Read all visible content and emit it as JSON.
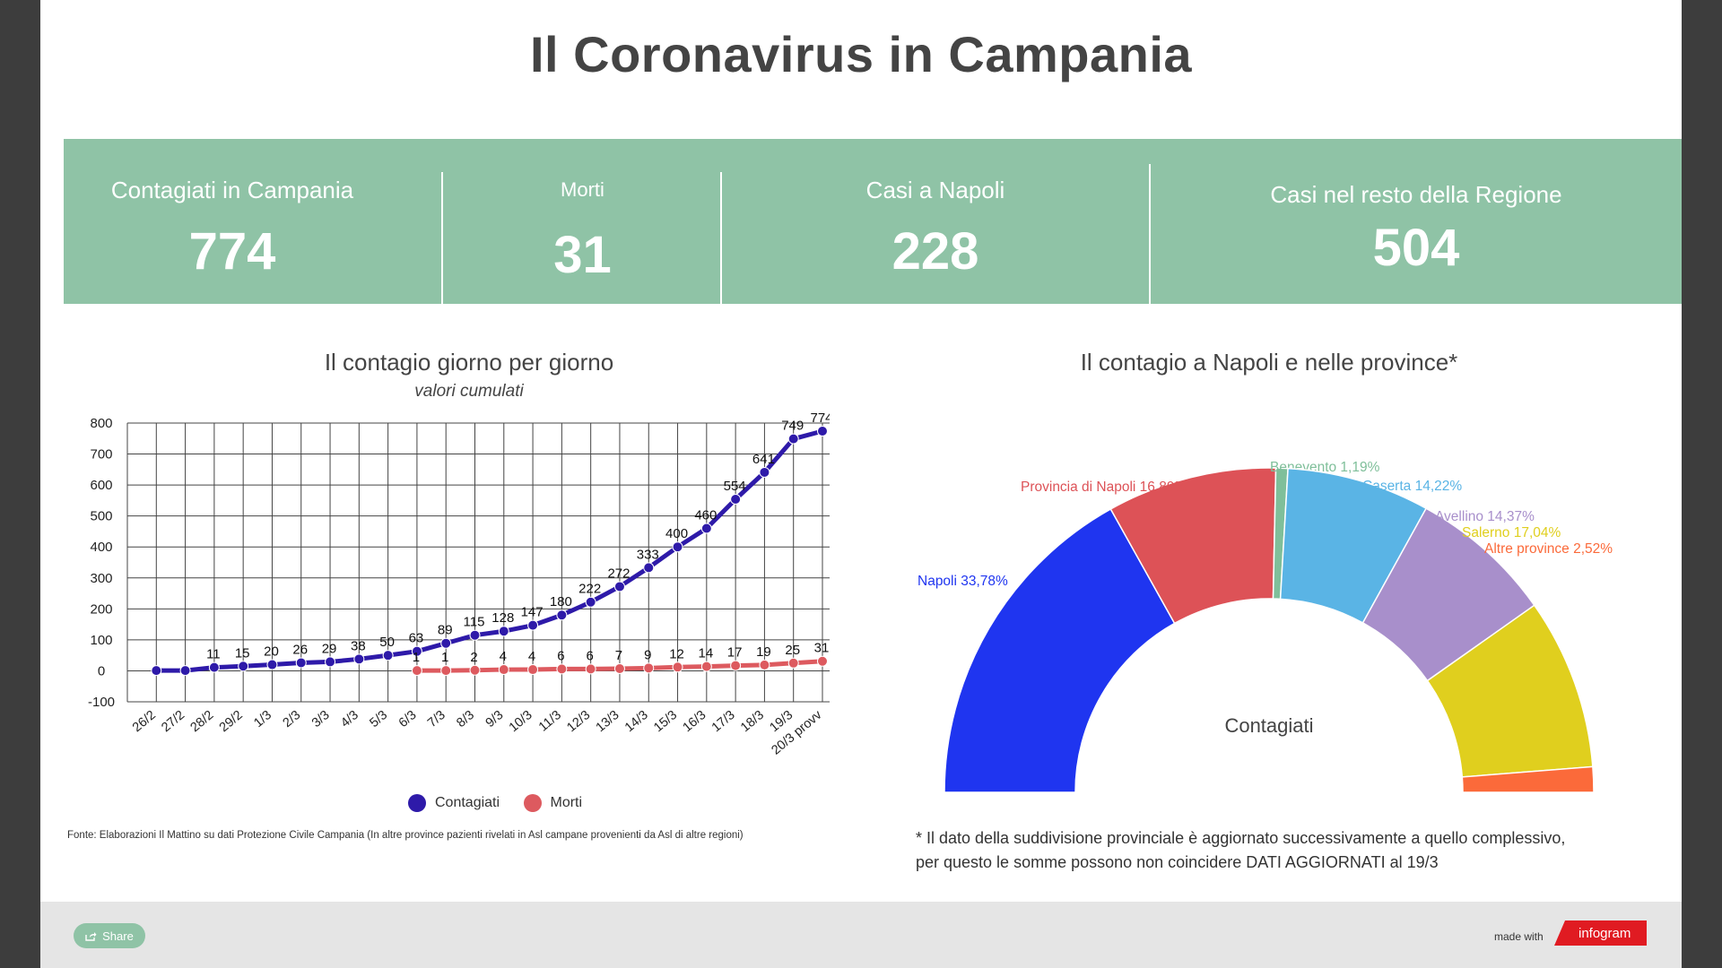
{
  "title": "Il Coronavirus in Campania",
  "stats": [
    {
      "label": "Contagiati in Campania",
      "value": "774"
    },
    {
      "label": "Morti",
      "value": "31"
    },
    {
      "label": "Casi a Napoli",
      "value": "228"
    },
    {
      "label": "Casi nel resto della Regione",
      "value": "504"
    }
  ],
  "colors": {
    "stats_band": "#8fc3a6",
    "title_text": "#444444",
    "contagiati": "#2e1aa9",
    "morti": "#dd5a5f"
  },
  "chart_data": [
    {
      "type": "line",
      "title": "Il contagio giorno per giorno",
      "subtitle": "valori cumulati",
      "categories": [
        "26/2",
        "27/2",
        "28/2",
        "29/2",
        "1/3",
        "2/3",
        "3/3",
        "4/3",
        "5/3",
        "6/3",
        "7/3",
        "8/3",
        "9/3",
        "10/3",
        "11/3",
        "12/3",
        "13/3",
        "14/3",
        "15/3",
        "16/3",
        "17/3",
        "18/3",
        "19/3",
        "20/3 provv"
      ],
      "series": [
        {
          "name": "Contagiati",
          "color": "#2e1aa9",
          "values": [
            1,
            1,
            11,
            15,
            20,
            26,
            29,
            38,
            50,
            63,
            89,
            115,
            128,
            147,
            180,
            222,
            272,
            333,
            400,
            460,
            554,
            641,
            749,
            774
          ],
          "labels": [
            "",
            "",
            "11",
            "15",
            "20",
            "26",
            "29",
            "38",
            "50",
            "63",
            "89",
            "115",
            "128",
            "147",
            "180",
            "222",
            "272",
            "333",
            "400",
            "460",
            "554",
            "641",
            "749",
            "774"
          ]
        },
        {
          "name": "Morti",
          "color": "#dd5a5f",
          "values": [
            null,
            null,
            null,
            null,
            null,
            null,
            null,
            null,
            null,
            1,
            1,
            2,
            4,
            4,
            6,
            6,
            7,
            9,
            12,
            14,
            17,
            19,
            25,
            31
          ],
          "labels": [
            "",
            "",
            "",
            "",
            "",
            "",
            "",
            "",
            "",
            "1",
            "1",
            "2",
            "4",
            "4",
            "6",
            "6",
            "7",
            "9",
            "12",
            "14",
            "17",
            "19",
            "25",
            "31"
          ]
        }
      ],
      "ylim": [
        -100,
        800
      ],
      "yticks": [
        "-100",
        "0",
        "100",
        "200",
        "300",
        "400",
        "500",
        "600",
        "700",
        "800"
      ],
      "grid": true,
      "legend": "bottom-center",
      "source": "Fonte: Elaborazioni Il Mattino su dati Protezione Civile Campania (In altre province pazienti rivelati in Asl campane provenienti da Asl di altre regioni)"
    },
    {
      "type": "pie",
      "title": "Il contagio a Napoli e nelle province*",
      "center_label": "Contagiati",
      "shape": "semi-donut",
      "slices": [
        {
          "name": "Napoli",
          "label": "Napoli 33,78%",
          "value": 33.78,
          "color": "#1f35f0"
        },
        {
          "name": "Provincia di Napoli",
          "label": "Provincia di Napoli 16,89%",
          "value": 16.89,
          "color": "#dd5257"
        },
        {
          "name": "Benevento",
          "label": "Benevento 1,19%",
          "value": 1.19,
          "color": "#7fbf9a"
        },
        {
          "name": "Caserta",
          "label": "Caserta 14,22%",
          "value": 14.22,
          "color": "#5ab4e5"
        },
        {
          "name": "Avellino",
          "label": "Avellino 14,37%",
          "value": 14.37,
          "color": "#a88fcb"
        },
        {
          "name": "Salerno",
          "label": "Salerno 17,04%",
          "value": 17.04,
          "color": "#e0cf1e"
        },
        {
          "name": "Altre province",
          "label": "Altre province 2,52%",
          "value": 2.52,
          "color": "#fb6a3a"
        }
      ],
      "footnote": [
        "* Il dato della suddivisione provinciale è aggiornato successivamente a quello complessivo,",
        "per questo le somme possono non coincidere DATI AGGIORNATI al 19/3"
      ]
    }
  ],
  "footer": {
    "share_label": "Share",
    "made_with": "made with",
    "brand": "infogram"
  }
}
